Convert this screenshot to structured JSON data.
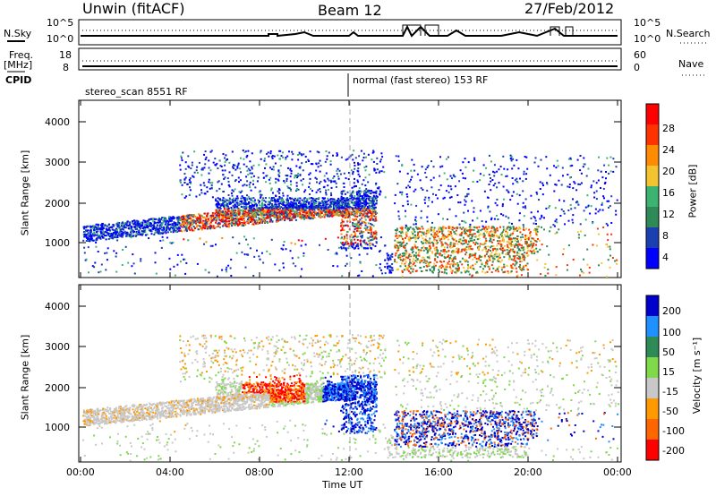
{
  "header": {
    "station": "Unwin (fitACF)",
    "beam": "Beam 12",
    "date": "27/Feb/2012"
  },
  "top_panels": {
    "nsky_label": "N.Sky",
    "nsearch_label": "N.Search",
    "freq_label": "Freq.",
    "freq_unit": "[MHz]",
    "nave_label": "Nave",
    "cpid_label": "CPID",
    "noise_ticks": [
      "10^5",
      "10^0"
    ],
    "freq_ticks": [
      "18",
      "8"
    ],
    "nave_ticks": [
      "60",
      "0"
    ],
    "cpid_modes": [
      "stereo_scan 8551 RF",
      "normal (fast stereo) 153 RF"
    ]
  },
  "colors": {
    "power_scale": [
      "#0000ff",
      "#1a3fb0",
      "#2e8b57",
      "#3cb371",
      "#f4c430",
      "#ff8c00",
      "#ff3300",
      "#ff0000"
    ],
    "velocity_scale": [
      "#0000cc",
      "#1e90ff",
      "#2e8b57",
      "#7fd94a",
      "#c8c8c8",
      "#ff9900",
      "#ff6600",
      "#ff0000"
    ]
  },
  "chart_data": [
    {
      "type": "heatmap",
      "title": "Power",
      "xlabel": "",
      "ylabel": "Slant Range [km]",
      "x_ticks": [
        "00:00",
        "04:00",
        "08:00",
        "12:00",
        "16:00",
        "20:00",
        "00:00"
      ],
      "y_ticks": [
        "1000",
        "2000",
        "3000",
        "4000"
      ],
      "ylim": [
        200,
        4600
      ],
      "colorbar": {
        "label": "Power [dB]",
        "ticks": [
          "4",
          "8",
          "12",
          "16",
          "20",
          "24",
          "28"
        ],
        "range": [
          0,
          30
        ]
      }
    },
    {
      "type": "heatmap",
      "title": "Velocity",
      "xlabel": "Time UT",
      "ylabel": "Slant Range [km]",
      "x_ticks": [
        "00:00",
        "04:00",
        "08:00",
        "12:00",
        "16:00",
        "20:00",
        "00:00"
      ],
      "y_ticks": [
        "1000",
        "2000",
        "3000",
        "4000"
      ],
      "ylim": [
        200,
        4600
      ],
      "colorbar": {
        "label": "Velocity [m s⁻¹]",
        "ticks": [
          "200",
          "100",
          "50",
          "15",
          "-15",
          "-50",
          "-100",
          "-200"
        ],
        "range": [
          -250,
          250
        ]
      }
    }
  ]
}
